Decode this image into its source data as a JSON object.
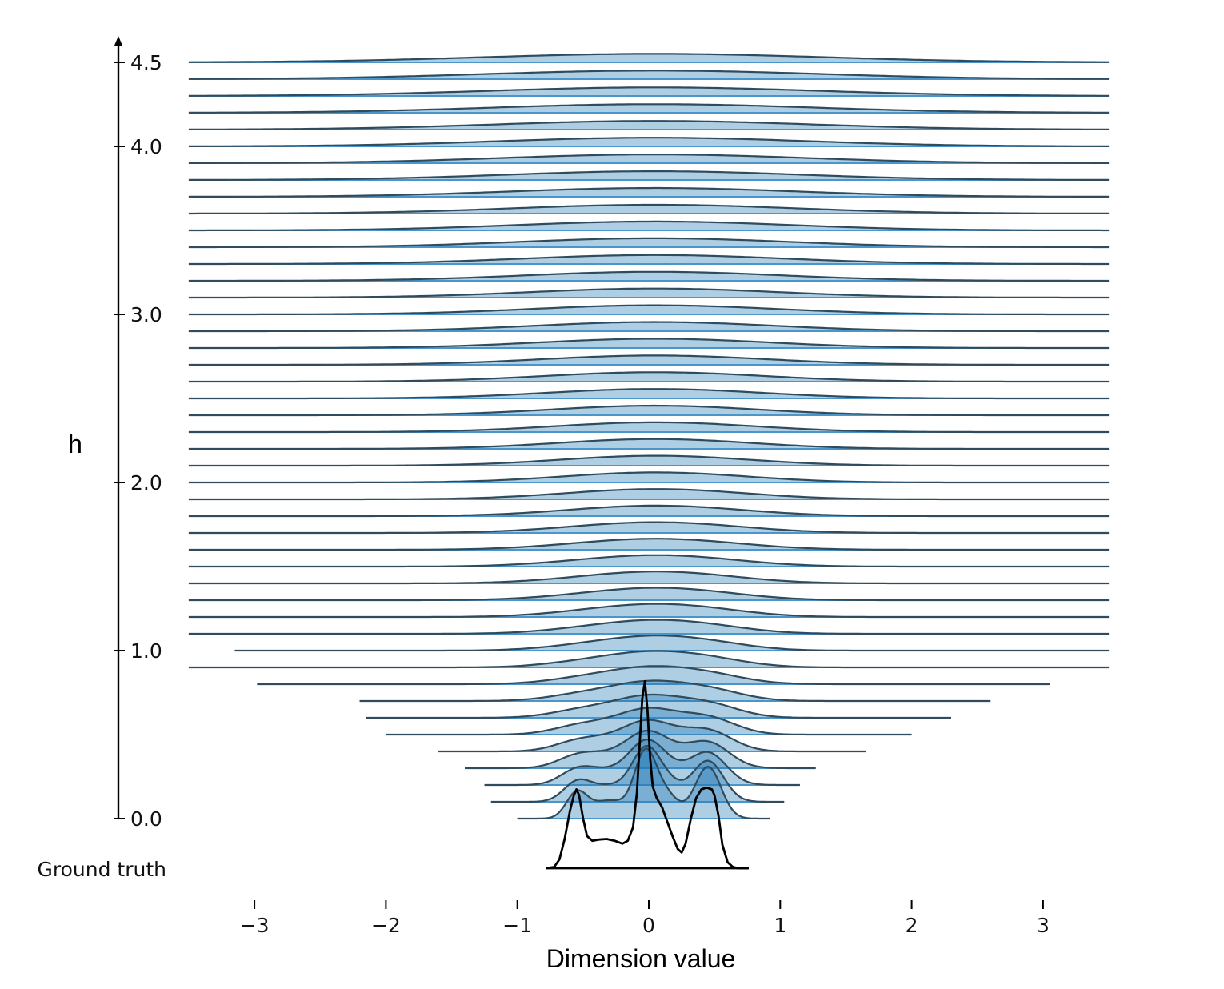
{
  "chart_data": {
    "type": "ridgeline",
    "xlabel": "Dimension value",
    "ylabel": "h",
    "ground_truth_label": "Ground truth",
    "xlim": [
      -3.5,
      3.5
    ],
    "ylim": [
      -0.3,
      4.6
    ],
    "x_ticks": [
      -3,
      -2,
      -1,
      0,
      1,
      2,
      3
    ],
    "x_tick_labels": [
      "−3",
      "−2",
      "−1",
      "0",
      "1",
      "2",
      "3"
    ],
    "y_ticks": [
      0.0,
      1.0,
      2.0,
      3.0,
      4.0,
      4.5
    ],
    "y_tick_labels": [
      "0.0",
      "1.0",
      "2.0",
      "3.0",
      "4.0",
      "4.5"
    ],
    "grid": false,
    "fill_color": "#1f77b4",
    "line_color": "#2f4b5c",
    "ground_truth_color": "#000000",
    "h_values": [
      0.0,
      0.1,
      0.2,
      0.3,
      0.4,
      0.5,
      0.6,
      0.7,
      0.8,
      0.9,
      1.0,
      1.1,
      1.2,
      1.3,
      1.4,
      1.5,
      1.6,
      1.7,
      1.8,
      1.9,
      2.0,
      2.1,
      2.2,
      2.3,
      2.4,
      2.5,
      2.6,
      2.7,
      2.8,
      2.9,
      3.0,
      3.1,
      3.2,
      3.3,
      3.4,
      3.5,
      3.6,
      3.7,
      3.8,
      3.9,
      4.0,
      4.1,
      4.2,
      4.3,
      4.4,
      4.5
    ],
    "x_support_min": [
      -1.0,
      -1.2,
      -1.25,
      -1.4,
      -1.6,
      -2.0,
      -2.15,
      -2.2,
      -2.98,
      -3.5,
      -3.15,
      -3.5,
      -3.5,
      -3.5,
      -3.5,
      -3.5,
      -3.5,
      -3.5,
      -3.5,
      -3.5,
      -3.5,
      -3.5,
      -3.5,
      -3.5,
      -3.5,
      -3.5,
      -3.5,
      -3.5,
      -3.5,
      -3.5,
      -3.5,
      -3.5,
      -3.5,
      -3.5,
      -3.5,
      -3.5,
      -3.5,
      -3.5,
      -3.5,
      -3.5,
      -3.5,
      -3.5,
      -3.5,
      -3.5,
      -3.5,
      -3.5
    ],
    "x_support_max": [
      0.92,
      1.03,
      1.15,
      1.27,
      1.65,
      2.0,
      2.3,
      2.6,
      3.05,
      3.5,
      3.5,
      3.5,
      3.5,
      3.5,
      3.5,
      3.5,
      3.5,
      3.5,
      3.5,
      3.5,
      3.5,
      3.5,
      3.5,
      3.5,
      3.5,
      3.5,
      3.5,
      3.5,
      3.5,
      3.5,
      3.5,
      3.5,
      3.5,
      3.5,
      3.5,
      3.5,
      3.5,
      3.5,
      3.5,
      3.5,
      3.5,
      3.5,
      3.5,
      3.5,
      3.5,
      3.5
    ],
    "ground_truth": {
      "x": [
        -0.78,
        -0.72,
        -0.68,
        -0.64,
        -0.6,
        -0.57,
        -0.55,
        -0.53,
        -0.5,
        -0.47,
        -0.43,
        -0.38,
        -0.32,
        -0.26,
        -0.2,
        -0.16,
        -0.12,
        -0.09,
        -0.07,
        -0.05,
        -0.03,
        -0.01,
        0.01,
        0.03,
        0.06,
        0.1,
        0.14,
        0.18,
        0.22,
        0.25,
        0.28,
        0.32,
        0.36,
        0.4,
        0.44,
        0.48,
        0.5,
        0.53,
        0.56,
        0.6,
        0.64,
        0.68,
        0.76
      ],
      "density": [
        0.0,
        0.02,
        0.15,
        0.5,
        0.98,
        1.25,
        1.35,
        1.25,
        0.85,
        0.55,
        0.47,
        0.49,
        0.5,
        0.47,
        0.42,
        0.47,
        0.7,
        1.3,
        2.1,
        2.9,
        3.2,
        2.7,
        1.9,
        1.4,
        1.2,
        1.05,
        0.8,
        0.55,
        0.33,
        0.27,
        0.42,
        0.85,
        1.2,
        1.35,
        1.38,
        1.35,
        1.25,
        0.9,
        0.4,
        0.1,
        0.02,
        0.0,
        0.0
      ]
    }
  }
}
